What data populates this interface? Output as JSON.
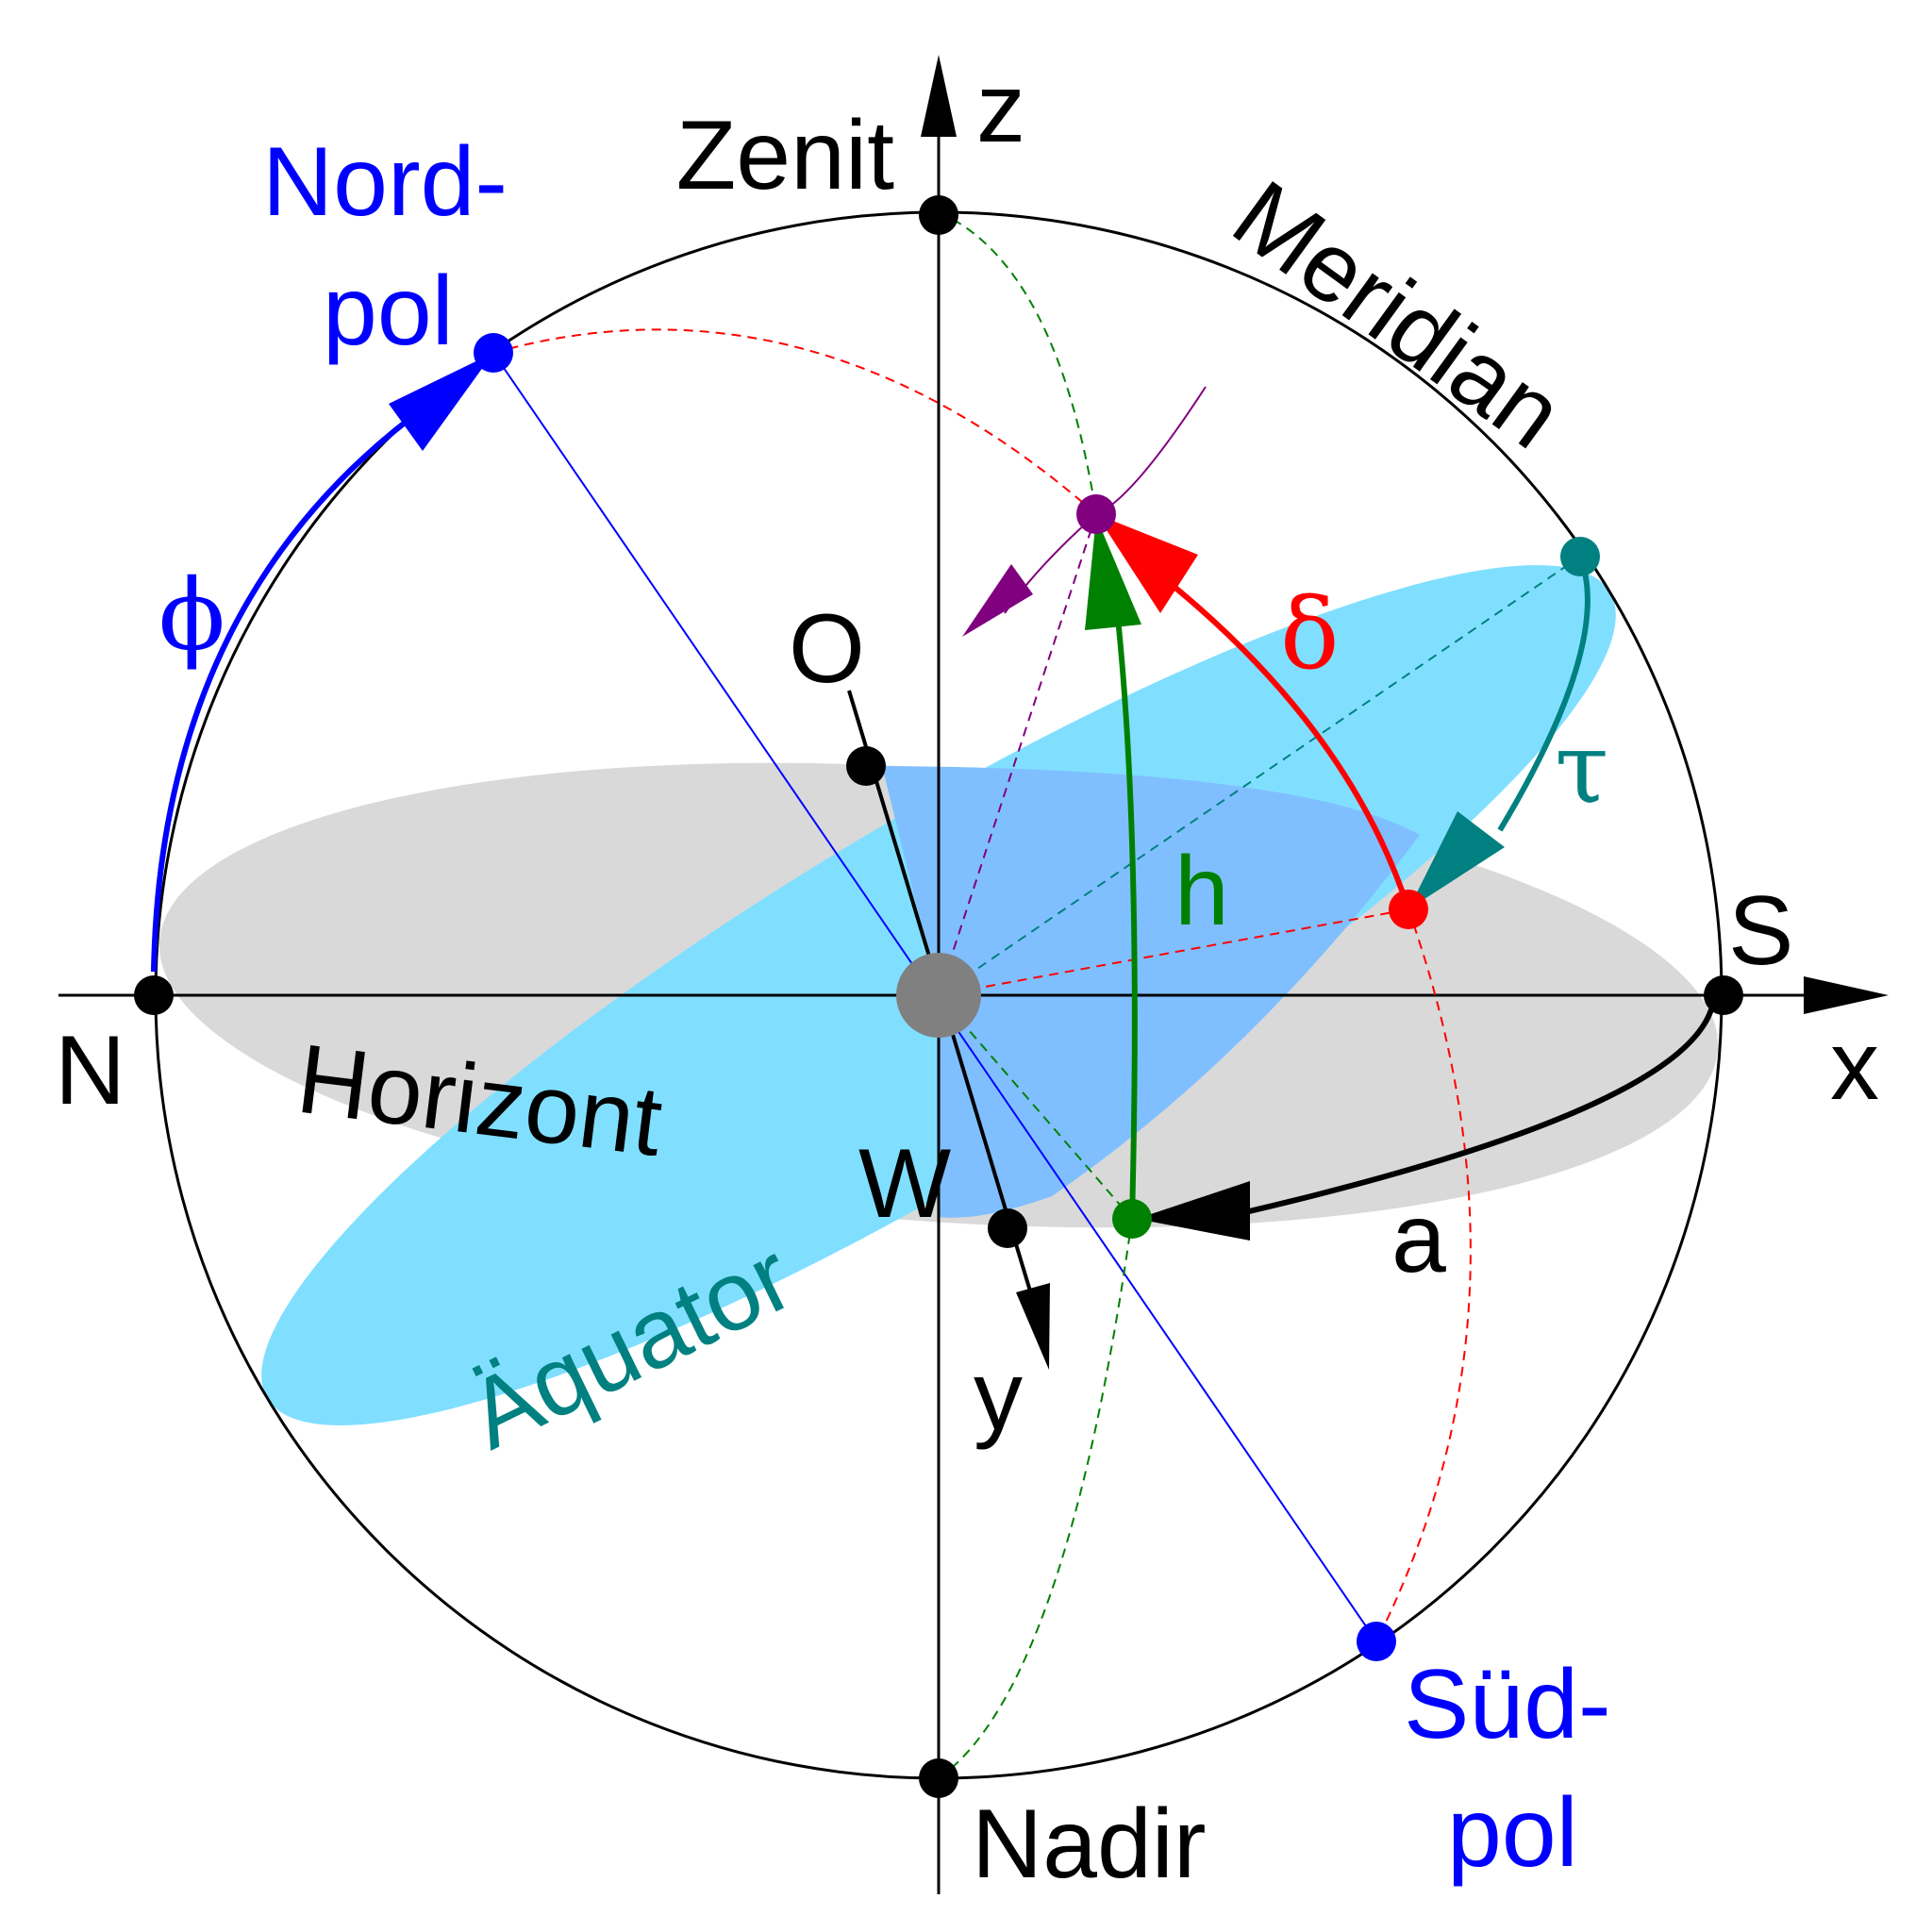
{
  "colors": {
    "horizon_fill": "#d9d9d9",
    "equator_fill": "#80dfff",
    "overlap_fill": "#80bfff",
    "blue": "#0000ff",
    "red": "#ff0000",
    "green": "#008000",
    "teal": "#008080",
    "purple": "#800080",
    "black": "#000000",
    "center": "#808080"
  },
  "axes": {
    "x": "x",
    "y": "y",
    "z": "z"
  },
  "points": {
    "zenith": "Zenit",
    "nadir": "Nadir",
    "north": "N",
    "south": "S",
    "east": "O",
    "west": "W",
    "north_pole": [
      "Nord-",
      "pol"
    ],
    "south_pole": [
      "Süd-",
      "pol"
    ]
  },
  "circles": {
    "meridian": "Meridian",
    "horizon": "Horizont",
    "equator": "Äquator"
  },
  "angles": {
    "latitude": "ϕ",
    "declination": "δ",
    "hour_angle": "τ",
    "altitude": "h",
    "azimuth": "a"
  }
}
